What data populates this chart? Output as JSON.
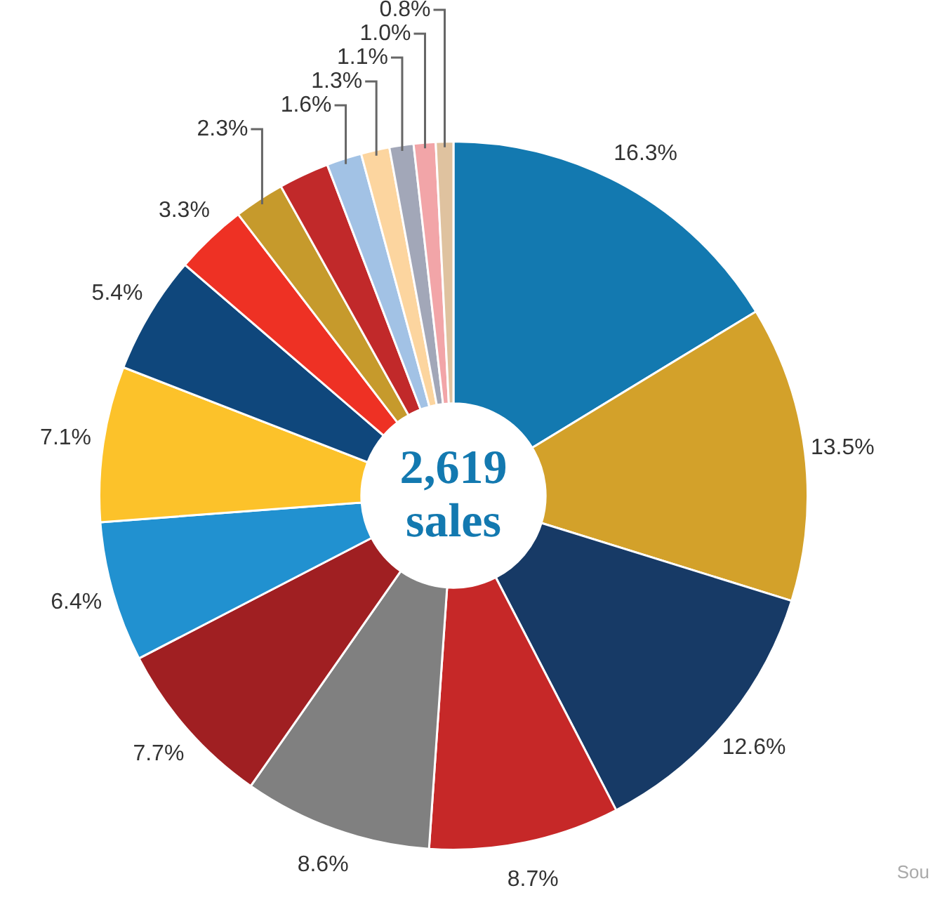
{
  "chart_data": {
    "type": "donut",
    "title": "2,619",
    "subtitle": "sales",
    "categories": [
      null,
      null,
      null,
      null,
      null,
      null,
      null,
      null,
      null,
      null,
      null,
      null,
      null,
      null,
      null,
      null,
      null
    ],
    "values": [
      16.3,
      13.5,
      12.6,
      8.7,
      8.6,
      7.7,
      6.4,
      7.1,
      5.4,
      3.3,
      2.3,
      2.3,
      1.6,
      1.3,
      1.1,
      1.0,
      0.8
    ],
    "value_labels": [
      "16.3%",
      "13.5%",
      "12.6%",
      "8.7%",
      "8.6%",
      "7.7%",
      "6.4%",
      "7.1%",
      "5.4%",
      "3.3%",
      "2.3%",
      null,
      "1.6%",
      "1.3%",
      "1.1%",
      "1.0%",
      "0.8%"
    ],
    "colors": [
      "#1379b0",
      "#d3a12a",
      "#173a66",
      "#c62828",
      "#808080",
      "#a01f22",
      "#2191d0",
      "#fcc22a",
      "#0f477c",
      "#ee3124",
      "#c69a2c",
      "#c1292a",
      "#a2c2e5",
      "#fcd59f",
      "#a2a7b8",
      "#f2a5a8",
      "#dfc29f"
    ],
    "annotations": [
      "Sou"
    ],
    "legend": false
  }
}
